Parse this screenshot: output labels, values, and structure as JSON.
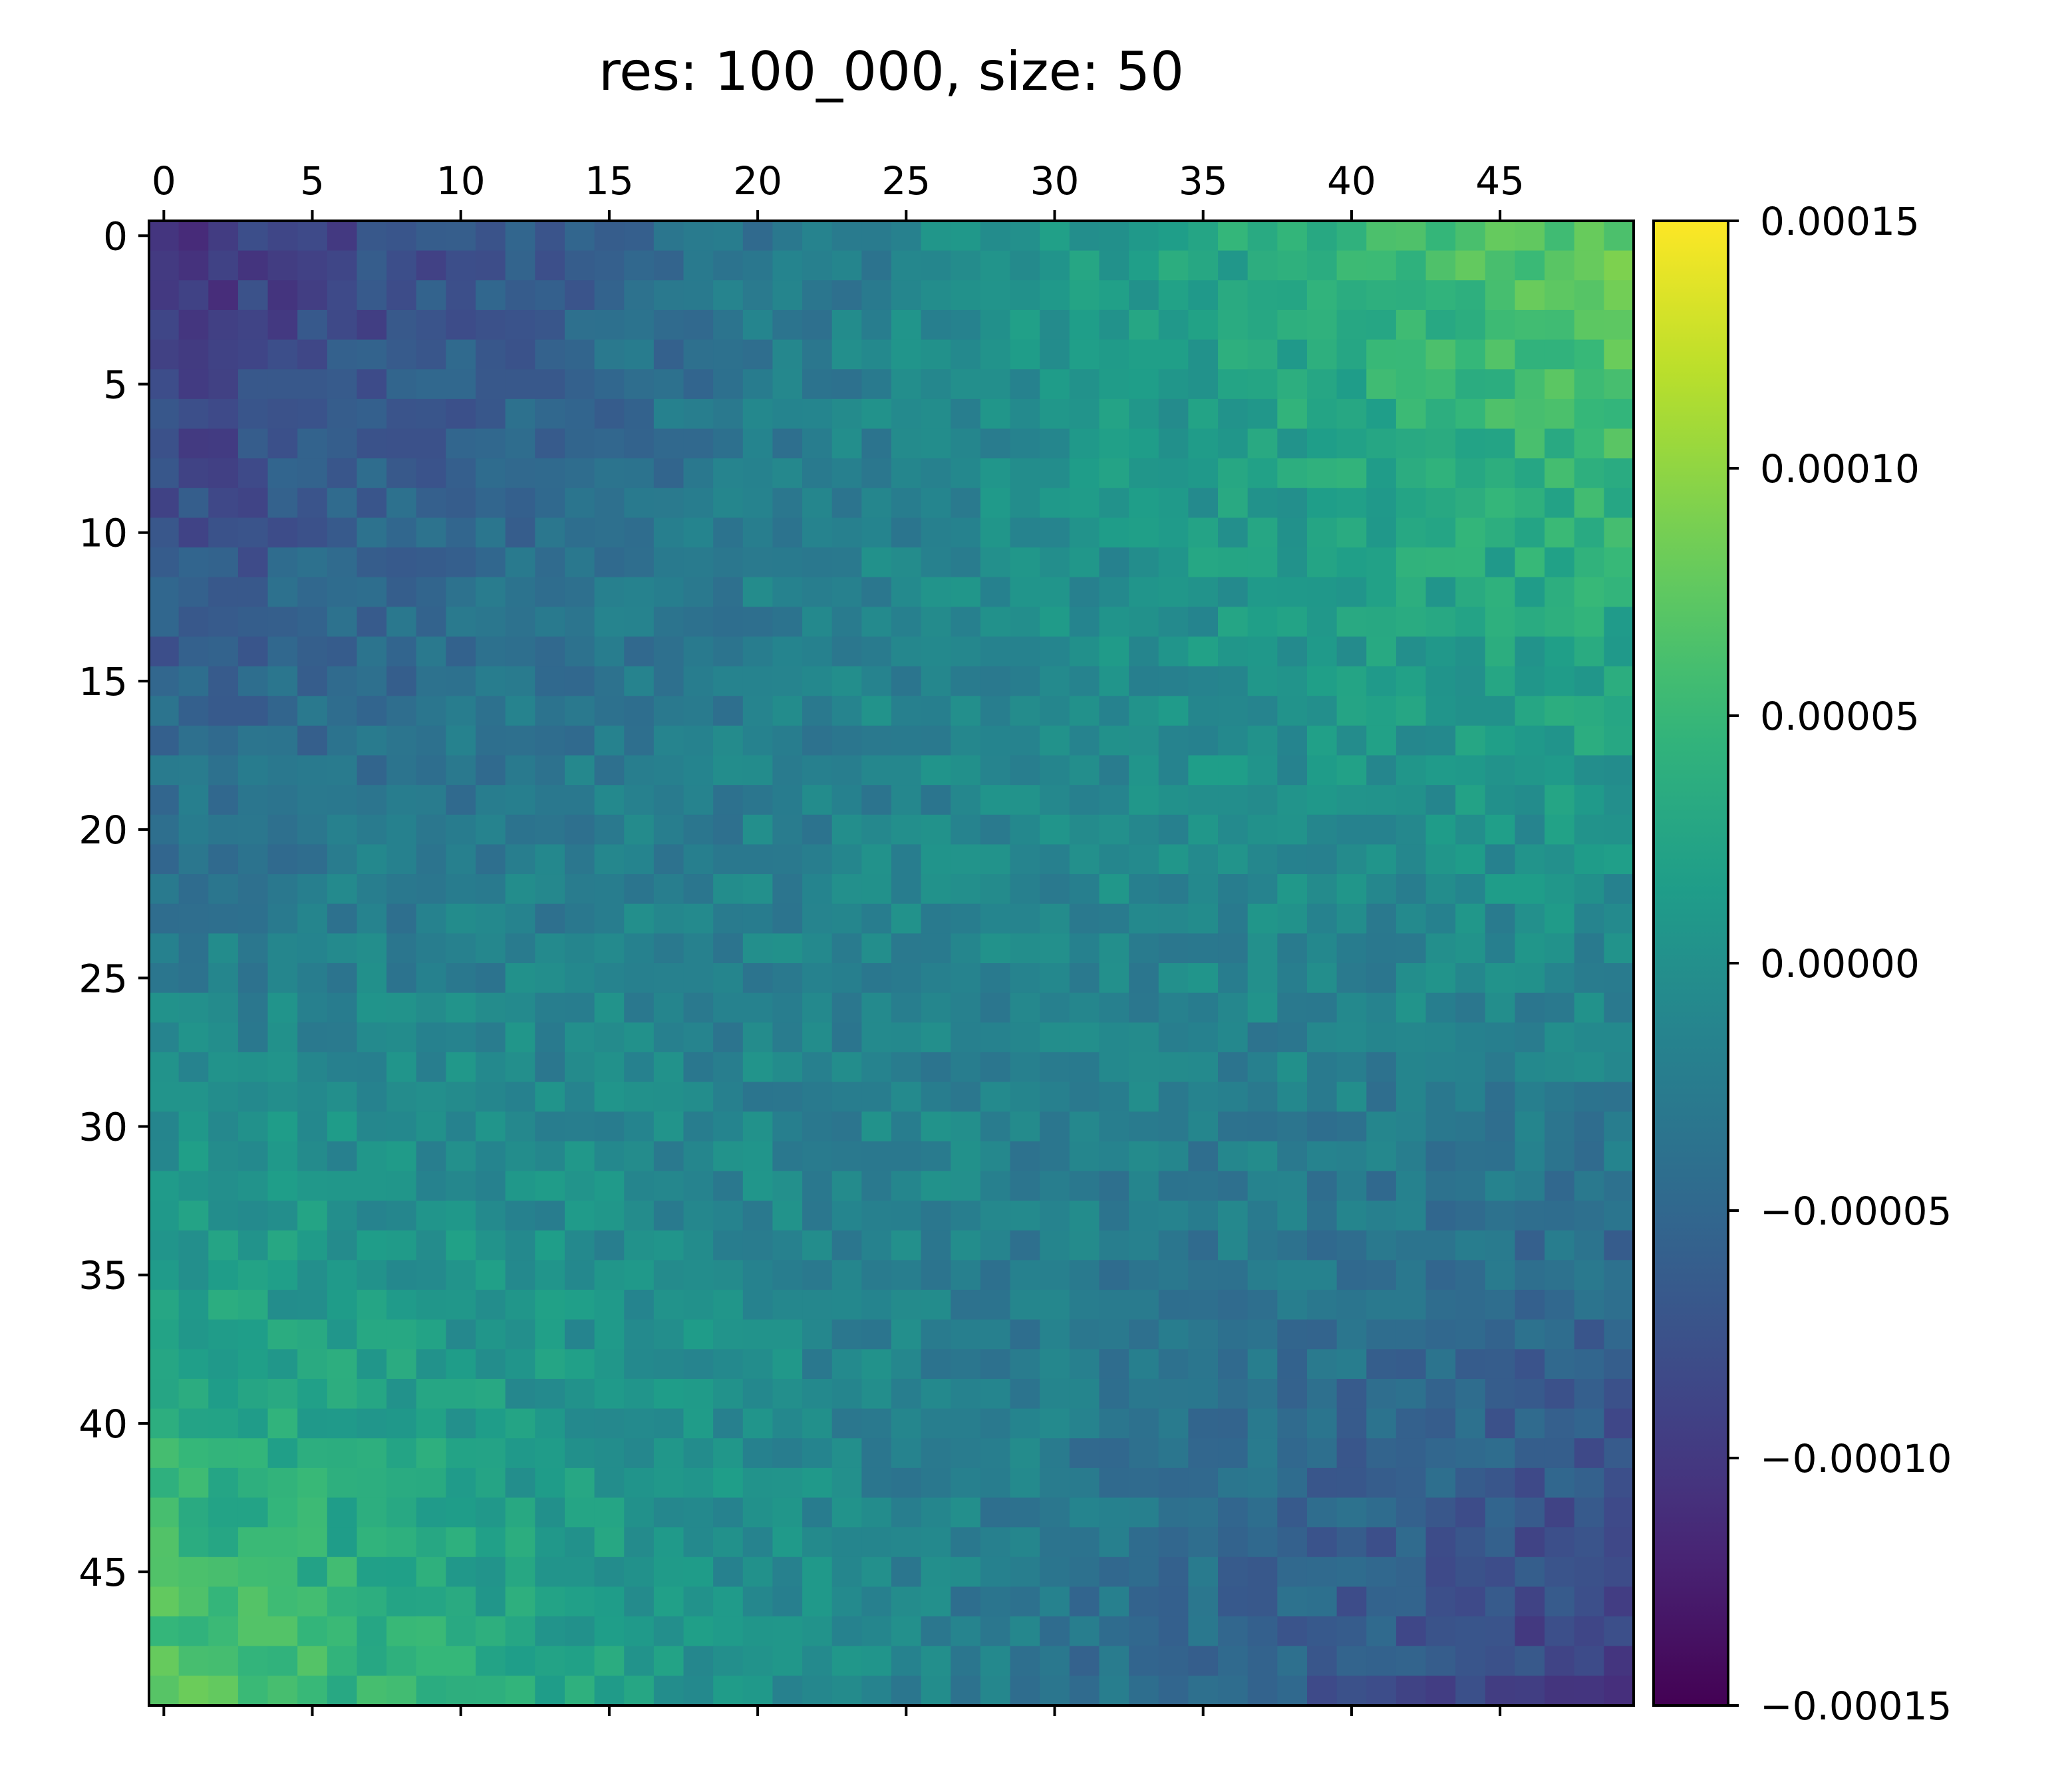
{
  "chart_data": {
    "type": "heatmap",
    "title": "res: 100_000, size: 50",
    "rows": 50,
    "cols": 50,
    "colormap": "viridis",
    "vmin": -0.00015,
    "vmax": 0.00015,
    "x_ticks": [
      0,
      5,
      10,
      15,
      20,
      25,
      30,
      35,
      40,
      45
    ],
    "y_ticks": [
      0,
      5,
      10,
      15,
      20,
      25,
      30,
      35,
      40,
      45
    ],
    "x_tick_labels": [
      "0",
      "5",
      "10",
      "15",
      "20",
      "25",
      "30",
      "35",
      "40",
      "45"
    ],
    "y_tick_labels": [
      "0",
      "5",
      "10",
      "15",
      "20",
      "25",
      "30",
      "35",
      "40",
      "45"
    ],
    "x_axis_position": "top",
    "colorbar": {
      "position": "right",
      "ticks": [
        0.00015,
        0.0001,
        5e-05,
        0,
        -5e-05,
        -0.0001,
        -0.00015
      ],
      "tick_labels": [
        "0.00015",
        "0.00010",
        "0.00005",
        "0.00000",
        "−0.00005",
        "−0.00010",
        "−0.00015"
      ]
    },
    "value_model": {
      "description": "approximate gradient field read from the image",
      "anchors": {
        "top_left": -0.00011,
        "top_right": 8e-05,
        "bottom_left": 7e-05,
        "bottom_right": -0.0001,
        "center": 0.0
      },
      "noise_amplitude": 2e-05
    }
  }
}
